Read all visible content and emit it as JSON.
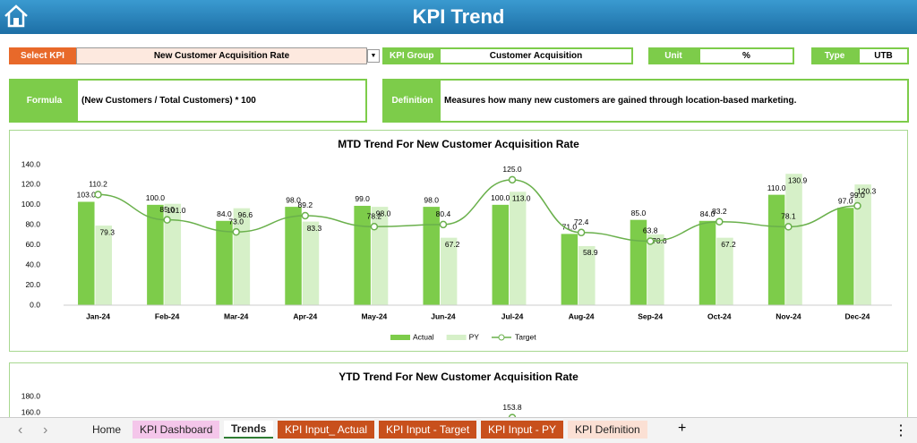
{
  "header": {
    "title": "KPI Trend"
  },
  "controls": {
    "select_kpi_label": "Select KPI",
    "select_kpi_value": "New Customer Acquisition Rate",
    "kpi_group_label": "KPI Group",
    "kpi_group_value": "Customer Acquisition",
    "unit_label": "Unit",
    "unit_value": "%",
    "type_label": "Type",
    "type_value": "UTB",
    "formula_label": "Formula",
    "formula_value": "(New Customers / Total Customers) * 100",
    "definition_label": "Definition",
    "definition_value": "Measures how many new customers are gained through location-based marketing."
  },
  "charts": [
    {
      "type": "bar",
      "title": "MTD Trend For New Customer Acquisition Rate",
      "categories": [
        "Jan-24",
        "Feb-24",
        "Mar-24",
        "Apr-24",
        "May-24",
        "Jun-24",
        "Jul-24",
        "Aug-24",
        "Sep-24",
        "Oct-24",
        "Nov-24",
        "Dec-24"
      ],
      "ylim": [
        0,
        140
      ],
      "yticks": [
        {
          "value": 0,
          "label": "0.0"
        },
        {
          "value": 20,
          "label": "20.0"
        },
        {
          "value": 40,
          "label": "40.0"
        },
        {
          "value": 60,
          "label": "60.0"
        },
        {
          "value": 80,
          "label": "80.0"
        },
        {
          "value": 100,
          "label": "100.0"
        },
        {
          "value": 120,
          "label": "120.0"
        },
        {
          "value": 140,
          "label": "140.0"
        }
      ],
      "series": [
        {
          "name": "Actual",
          "color": "#7dcc4a",
          "values": [
            103,
            100,
            84,
            98,
            99,
            98,
            100,
            71,
            85,
            84,
            110,
            97
          ],
          "value_labels": [
            "103.0",
            "100.0",
            "84.0",
            "98.0",
            "99.0",
            "98.0",
            "100.0",
            "71.0",
            "85.0",
            "84.0",
            "110.0",
            "97.0"
          ]
        },
        {
          "name": "PY",
          "color": "#d6f0c8",
          "values": [
            79.3,
            101,
            96.6,
            83.3,
            98,
            67.2,
            113,
            58.9,
            70.6,
            67.2,
            130.9,
            120.3
          ],
          "value_labels": [
            "79.3",
            "101.0",
            "96.6",
            "83.3",
            "98.0",
            "67.2",
            "113.0",
            "58.9",
            "70.6",
            "67.2",
            "130.9",
            "120.3"
          ]
        },
        {
          "name": "Target",
          "type": "line",
          "color": "#6ab04c",
          "values": [
            110.2,
            85,
            73,
            89.2,
            78.2,
            80.4,
            125,
            72.4,
            63.8,
            83.2,
            78.1,
            99
          ],
          "value_labels": [
            "110.2",
            "85.0",
            "73.0",
            "89.2",
            "78.2",
            "80.4",
            "125.0",
            "72.4",
            "63.8",
            "83.2",
            "78.1",
            "99.0"
          ]
        }
      ]
    },
    {
      "type": "bar",
      "title": "YTD Trend For New Customer Acquisition Rate",
      "ylim": [
        140,
        180
      ],
      "yticks": [
        {
          "value": 160,
          "label": "160.0"
        },
        {
          "value": 180,
          "label": "180.0"
        }
      ],
      "series": [
        {
          "name": "Target",
          "type": "line",
          "color": "#6ab04c",
          "values": [
            null,
            null,
            null,
            null,
            null,
            null,
            153.8,
            null,
            null,
            null,
            null,
            null
          ],
          "value_labels": [
            null,
            null,
            null,
            null,
            null,
            null,
            "153.8",
            null,
            null,
            null,
            null,
            null
          ]
        }
      ]
    }
  ],
  "tabs": [
    "Home",
    "KPI Dashboard",
    "Trends",
    "KPI Input_ Actual",
    "KPI Input - Target",
    "KPI Input - PY",
    "KPI Definition"
  ]
}
